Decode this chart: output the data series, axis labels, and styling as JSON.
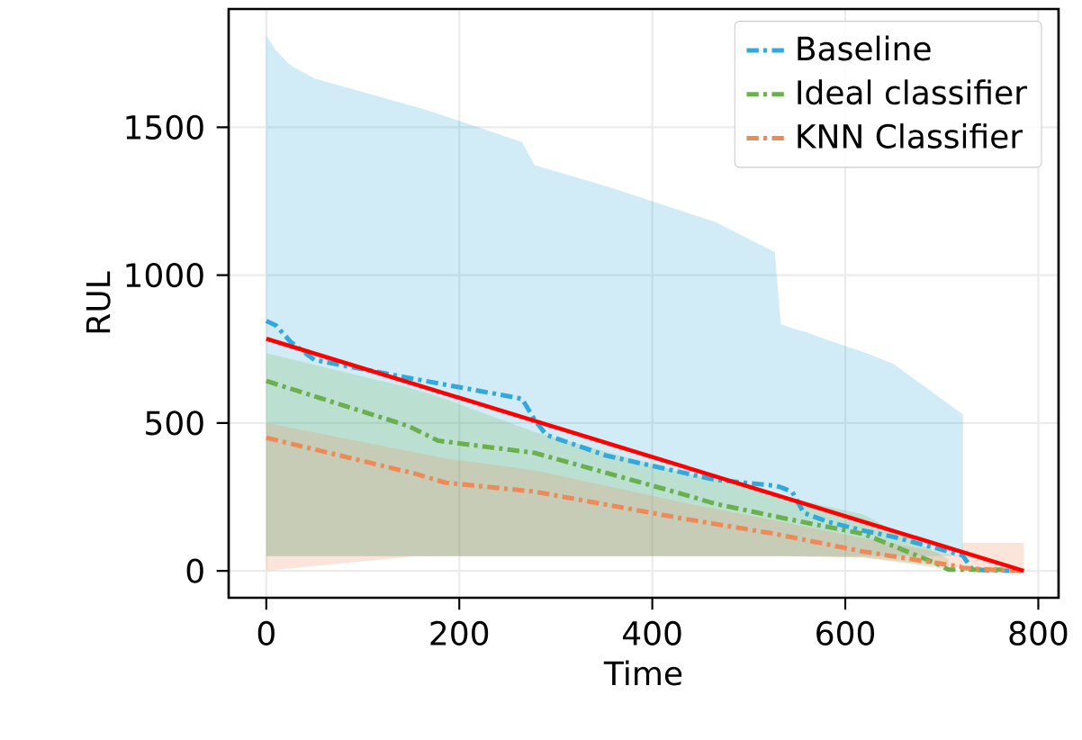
{
  "chart_data": {
    "type": "line",
    "xlabel": "Time",
    "ylabel": "RUL",
    "xlim": [
      -39,
      821
    ],
    "ylim": [
      -91,
      1900
    ],
    "xticks": [
      0,
      200,
      400,
      600,
      800
    ],
    "yticks": [
      0,
      500,
      1000,
      1500
    ],
    "grid": true,
    "legend": "top right",
    "series": [
      {
        "name": "Baseline",
        "color": "#33a8dc",
        "line_style": "dashdot",
        "x": [
          0,
          10,
          25,
          50,
          165,
          265,
          278,
          290,
          353,
          465,
          527,
          533,
          545,
          557,
          582,
          619,
          650,
          719,
          722,
          732,
          770
        ],
        "values": [
          845,
          830,
          775,
          713,
          642,
          582,
          511,
          460,
          389,
          308,
          288,
          283,
          267,
          196,
          166,
          136,
          115,
          55,
          50,
          4,
          0
        ],
        "upper": [
          1810,
          1760,
          1710,
          1665,
          1560,
          1450,
          1372,
          1360,
          1300,
          1180,
          1078,
          835,
          820,
          810,
          780,
          740,
          700,
          535,
          530,
          null,
          null
        ],
        "lower": [
          50,
          50,
          50,
          50,
          50,
          50,
          50,
          50,
          50,
          50,
          50,
          50,
          50,
          50,
          50,
          50,
          50,
          50,
          50,
          null,
          null
        ]
      },
      {
        "name": "Ideal classifier",
        "color": "#6ab04c",
        "line_style": "dashdot",
        "x": [
          0,
          147,
          178,
          278,
          433,
          465,
          539,
          619,
          695,
          707,
          763
        ],
        "values": [
          642,
          490,
          440,
          399,
          258,
          227,
          176,
          125,
          24,
          4,
          4
        ],
        "upper": [
          736,
          620,
          590,
          470,
          330,
          310,
          250,
          190,
          60,
          40,
          null
        ],
        "lower": [
          50,
          50,
          50,
          50,
          50,
          50,
          50,
          45,
          10,
          0,
          null
        ]
      },
      {
        "name": "KNN Classifier",
        "color": "#ee8a58",
        "line_style": "dashdot",
        "x": [
          0,
          155,
          186,
          278,
          433,
          527,
          619,
          719,
          722,
          770,
          785
        ],
        "values": [
          450,
          328,
          298,
          268,
          176,
          125,
          65,
          14,
          10,
          0,
          0
        ],
        "upper": [
          500,
          400,
          380,
          340,
          230,
          170,
          110,
          50,
          95,
          95,
          95
        ],
        "lower": [
          0,
          50,
          50,
          50,
          50,
          50,
          45,
          10,
          0,
          0,
          0
        ]
      },
      {
        "color": "#ff0000",
        "line_style": "solid",
        "x": [
          0,
          785
        ],
        "values": [
          785,
          0
        ]
      }
    ]
  }
}
